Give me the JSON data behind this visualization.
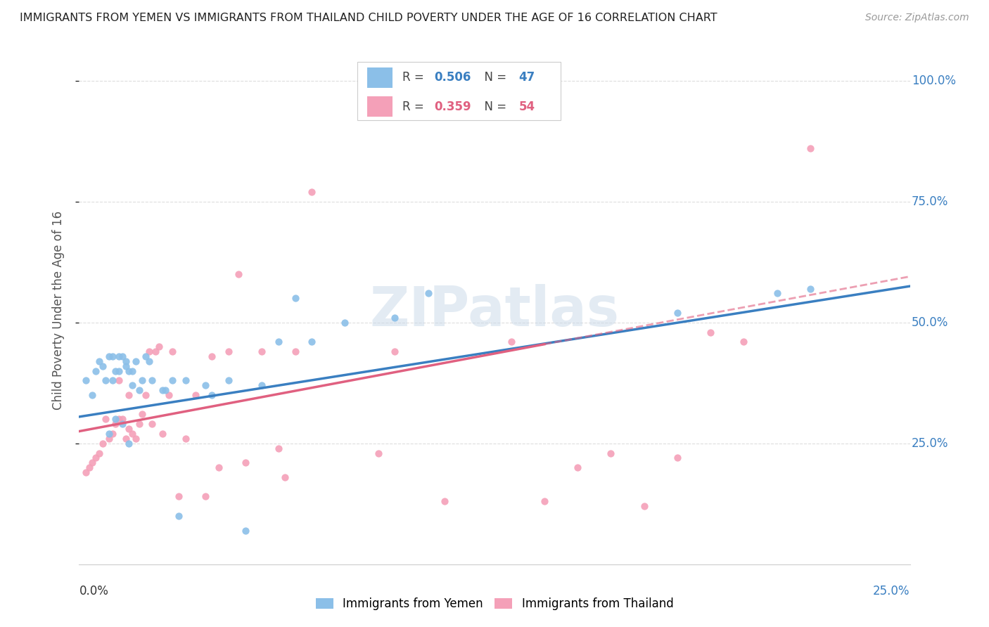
{
  "title": "IMMIGRANTS FROM YEMEN VS IMMIGRANTS FROM THAILAND CHILD POVERTY UNDER THE AGE OF 16 CORRELATION CHART",
  "source": "Source: ZipAtlas.com",
  "ylabel": "Child Poverty Under the Age of 16",
  "xlim": [
    0.0,
    0.25
  ],
  "ylim": [
    0.0,
    1.05
  ],
  "watermark": "ZIPatlas",
  "legend_label_yemen": "Immigrants from Yemen",
  "legend_label_thailand": "Immigrants from Thailand",
  "color_yemen": "#8bbfe8",
  "color_thailand": "#f4a0b8",
  "color_line_yemen": "#3a7fc1",
  "color_line_thailand": "#e06080",
  "color_blue": "#3a7fc1",
  "color_gray": "#aaaaaa",
  "grid_color": "#dddddd",
  "background_color": "#ffffff",
  "scatter_yemen_x": [
    0.002,
    0.004,
    0.005,
    0.006,
    0.007,
    0.008,
    0.009,
    0.009,
    0.01,
    0.01,
    0.011,
    0.011,
    0.012,
    0.012,
    0.013,
    0.013,
    0.014,
    0.014,
    0.015,
    0.015,
    0.016,
    0.016,
    0.017,
    0.018,
    0.019,
    0.02,
    0.021,
    0.022,
    0.025,
    0.026,
    0.028,
    0.03,
    0.032,
    0.038,
    0.04,
    0.045,
    0.05,
    0.055,
    0.06,
    0.065,
    0.07,
    0.08,
    0.095,
    0.105,
    0.18,
    0.21,
    0.22
  ],
  "scatter_yemen_y": [
    0.38,
    0.35,
    0.4,
    0.42,
    0.41,
    0.38,
    0.27,
    0.43,
    0.38,
    0.43,
    0.3,
    0.4,
    0.4,
    0.43,
    0.29,
    0.43,
    0.42,
    0.41,
    0.4,
    0.25,
    0.37,
    0.4,
    0.42,
    0.36,
    0.38,
    0.43,
    0.42,
    0.38,
    0.36,
    0.36,
    0.38,
    0.1,
    0.38,
    0.37,
    0.35,
    0.38,
    0.07,
    0.37,
    0.46,
    0.55,
    0.46,
    0.5,
    0.51,
    0.56,
    0.52,
    0.56,
    0.57
  ],
  "scatter_thailand_x": [
    0.002,
    0.003,
    0.004,
    0.005,
    0.006,
    0.007,
    0.008,
    0.009,
    0.01,
    0.011,
    0.012,
    0.012,
    0.013,
    0.014,
    0.015,
    0.015,
    0.016,
    0.017,
    0.018,
    0.019,
    0.02,
    0.021,
    0.022,
    0.023,
    0.024,
    0.025,
    0.027,
    0.028,
    0.03,
    0.032,
    0.035,
    0.038,
    0.04,
    0.042,
    0.045,
    0.048,
    0.05,
    0.055,
    0.06,
    0.062,
    0.065,
    0.07,
    0.09,
    0.095,
    0.11,
    0.13,
    0.14,
    0.15,
    0.16,
    0.17,
    0.18,
    0.19,
    0.2,
    0.22
  ],
  "scatter_thailand_y": [
    0.19,
    0.2,
    0.21,
    0.22,
    0.23,
    0.25,
    0.3,
    0.26,
    0.27,
    0.29,
    0.3,
    0.38,
    0.3,
    0.26,
    0.28,
    0.35,
    0.27,
    0.26,
    0.29,
    0.31,
    0.35,
    0.44,
    0.29,
    0.44,
    0.45,
    0.27,
    0.35,
    0.44,
    0.14,
    0.26,
    0.35,
    0.14,
    0.43,
    0.2,
    0.44,
    0.6,
    0.21,
    0.44,
    0.24,
    0.18,
    0.44,
    0.77,
    0.23,
    0.44,
    0.13,
    0.46,
    0.13,
    0.2,
    0.23,
    0.12,
    0.22,
    0.48,
    0.46,
    0.86
  ],
  "fit_yemen_x0": 0.0,
  "fit_yemen_y0": 0.305,
  "fit_yemen_x1": 0.25,
  "fit_yemen_y1": 0.575,
  "fit_thailand_solid_x0": 0.0,
  "fit_thailand_solid_y0": 0.275,
  "fit_thailand_solid_x1": 0.14,
  "fit_thailand_solid_y1": 0.455,
  "fit_thailand_dash_x0": 0.14,
  "fit_thailand_dash_y0": 0.455,
  "fit_thailand_dash_x1": 0.25,
  "fit_thailand_dash_y1": 0.595,
  "ytick_values": [
    0.25,
    0.5,
    0.75,
    1.0
  ],
  "ytick_labels": [
    "25.0%",
    "50.0%",
    "75.0%",
    "100.0%"
  ]
}
